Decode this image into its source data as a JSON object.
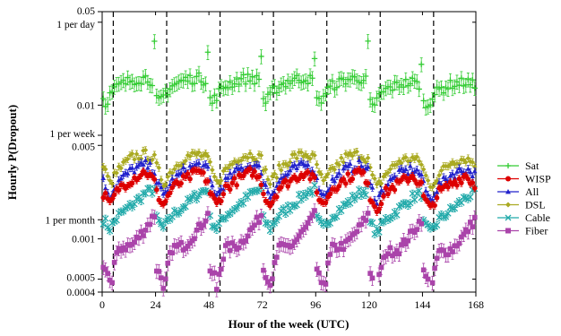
{
  "chart_data": {
    "type": "scatter",
    "title": "",
    "xlabel": "Hour of the week (UTC)",
    "ylabel": "Hourly P(Dropout)",
    "xlim": [
      0,
      168
    ],
    "ylim": [
      0.0004,
      0.05
    ],
    "y_scale": "log",
    "x_ticks": [
      0,
      24,
      48,
      72,
      96,
      120,
      144,
      168
    ],
    "y_ticks": [
      {
        "value": 0.05,
        "label": "0.05"
      },
      {
        "value": 0.04167,
        "label": "1 per day"
      },
      {
        "value": 0.01,
        "label": "0.01"
      },
      {
        "value": 0.00595,
        "label": "1 per week"
      },
      {
        "value": 0.005,
        "label": "0.005"
      },
      {
        "value": 0.00139,
        "label": "1 per month"
      },
      {
        "value": 0.001,
        "label": "0.001"
      },
      {
        "value": 0.0005,
        "label": "0.0005"
      },
      {
        "value": 0.0004,
        "label": "0.0004"
      }
    ],
    "vlines": [
      5,
      29,
      53,
      77,
      101,
      125,
      149
    ],
    "legend_position": "right",
    "series": [
      {
        "name": "Sat",
        "color": "#33cc33",
        "marker": "plus",
        "day_points": [
          [
            0,
            0.015
          ],
          [
            6,
            0.0105
          ],
          [
            9,
            0.0125
          ],
          [
            12,
            0.014
          ],
          [
            18,
            0.0155
          ],
          [
            24,
            0.016
          ],
          [
            29,
            0.0148
          ]
        ],
        "peak": {
          "x": 52,
          "y": 0.028
        }
      },
      {
        "name": "WISP",
        "color": "#dd0000",
        "marker": "circle",
        "day_points": [
          [
            0,
            0.0037
          ],
          [
            5,
            0.0022
          ],
          [
            8,
            0.0018
          ],
          [
            12,
            0.0024
          ],
          [
            18,
            0.0028
          ],
          [
            24,
            0.0032
          ],
          [
            29,
            0.0026
          ]
        ]
      },
      {
        "name": "All",
        "color": "#2222cc",
        "marker": "triangle",
        "day_points": [
          [
            0,
            0.0033
          ],
          [
            5,
            0.0027
          ],
          [
            8,
            0.0021
          ],
          [
            12,
            0.0027
          ],
          [
            18,
            0.0033
          ],
          [
            24,
            0.0036
          ],
          [
            29,
            0.0032
          ]
        ]
      },
      {
        "name": "DSL",
        "color": "#aaaa22",
        "marker": "diamond",
        "day_points": [
          [
            0,
            0.0041
          ],
          [
            5,
            0.0035
          ],
          [
            8,
            0.0026
          ],
          [
            12,
            0.0033
          ],
          [
            18,
            0.0041
          ],
          [
            24,
            0.0043
          ],
          [
            29,
            0.0039
          ]
        ]
      },
      {
        "name": "Cable",
        "color": "#22aaaa",
        "marker": "cross",
        "day_points": [
          [
            0,
            0.0017
          ],
          [
            5,
            0.0014
          ],
          [
            8,
            0.0012
          ],
          [
            12,
            0.0015
          ],
          [
            18,
            0.0018
          ],
          [
            24,
            0.0022
          ],
          [
            29,
            0.0024
          ]
        ]
      },
      {
        "name": "Fiber",
        "color": "#aa44aa",
        "marker": "square",
        "day_points": [
          [
            0,
            0.0009
          ],
          [
            5,
            0.0006
          ],
          [
            8,
            0.00048
          ],
          [
            12,
            0.00085
          ],
          [
            18,
            0.0009
          ],
          [
            24,
            0.0012
          ],
          [
            29,
            0.0016
          ]
        ]
      }
    ]
  }
}
